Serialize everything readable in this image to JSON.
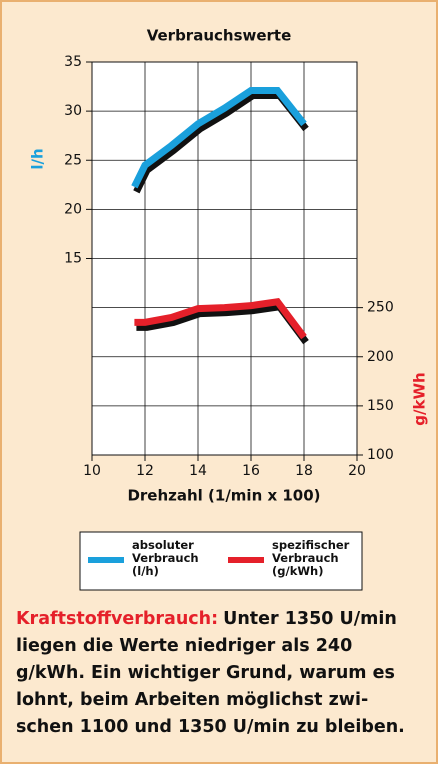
{
  "chart_data": {
    "type": "line",
    "title": "Verbrauchswerte",
    "xlabel": "Drehzahl (1/min x 100)",
    "ylabel": "l/h",
    "y2label": "g/kWh",
    "x": [
      11.6,
      12,
      13,
      14,
      15,
      16,
      17,
      18
    ],
    "xlim": [
      10,
      20
    ],
    "xticks": [
      10,
      12,
      14,
      16,
      18,
      20
    ],
    "ylim": [
      -5,
      35
    ],
    "yticks": [
      15,
      20,
      25,
      30,
      35
    ],
    "y2lim": [
      100,
      500
    ],
    "y2ticks": [
      100,
      150,
      200,
      250
    ],
    "grid": true,
    "series": [
      {
        "name": "absoluter Verbrauch (l/h)",
        "color": "#1aa0dc",
        "values": [
          22.3,
          24.5,
          26.5,
          28.7,
          30.3,
          32.1,
          32.1,
          28.7
        ]
      },
      {
        "name": "spezifischer Verbrauch (g/kWh)",
        "color": "#e5202a",
        "axis": "y2",
        "values": [
          235,
          235,
          240,
          249,
          250,
          252,
          256,
          220
        ]
      }
    ]
  },
  "caption": {
    "label": "Kraftstoffverbrauch:",
    "lines": [
      "Unter 1350 U/min",
      "liegen die Werte niedriger als 240",
      "g/kWh. Ein wichtiger Grund, warum es",
      "lohnt, beim Arbeiten möglichst zwi-",
      "schen 1100 und 1350 U/min zu bleiben."
    ]
  }
}
